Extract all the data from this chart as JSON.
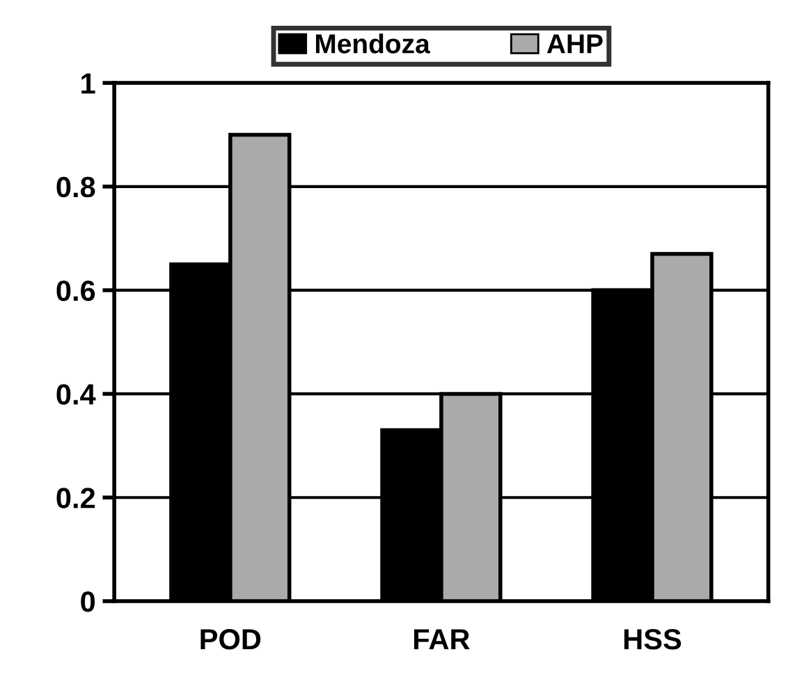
{
  "chart_data": {
    "type": "bar",
    "categories": [
      "POD",
      "FAR",
      "HSS"
    ],
    "series": [
      {
        "name": "Mendoza",
        "color": "#000000",
        "values": [
          0.65,
          0.33,
          0.6
        ]
      },
      {
        "name": "AHP",
        "color": "#aaaaaa",
        "values": [
          0.9,
          0.4,
          0.67
        ]
      }
    ],
    "ylim": [
      0,
      1
    ],
    "yticks": [
      0,
      {
        "value": 0.2,
        "label": "0.2"
      },
      {
        "value": 0.4,
        "label": "0.4"
      },
      {
        "value": 0.6,
        "label": "0.6"
      },
      {
        "value": 0.8,
        "label": "0.8"
      },
      1
    ],
    "grid": "y",
    "legend": "top"
  }
}
